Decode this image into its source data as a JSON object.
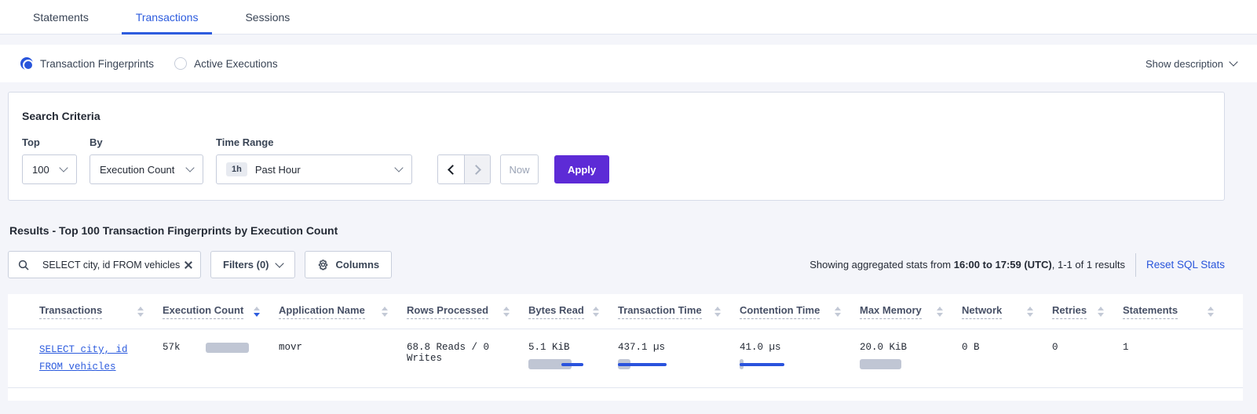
{
  "page": {
    "tabs": [
      {
        "label": "Statements",
        "active": false
      },
      {
        "label": "Transactions",
        "active": true
      },
      {
        "label": "Sessions",
        "active": false
      }
    ]
  },
  "view_mode": {
    "options": [
      {
        "label": "Transaction Fingerprints",
        "selected": true
      },
      {
        "label": "Active Executions",
        "selected": false
      }
    ],
    "show_description_label": "Show description"
  },
  "search_criteria": {
    "title": "Search Criteria",
    "top_label": "Top",
    "top_value": "100",
    "by_label": "By",
    "by_value": "Execution Count",
    "time_range_label": "Time Range",
    "time_range_badge": "1h",
    "time_range_value": "Past Hour",
    "now_label": "Now",
    "apply_label": "Apply"
  },
  "results": {
    "heading": "Results - Top 100 Transaction Fingerprints by Execution Count",
    "search_value": "SELECT city, id FROM vehicles WHE",
    "filters_label": "Filters (0)",
    "columns_label": "Columns",
    "stats_prefix": "Showing aggregated stats from ",
    "stats_range": "16:00 to 17:59 (UTC)",
    "stats_suffix": ", 1-1 of 1 results",
    "reset_link": "Reset SQL Stats"
  },
  "table": {
    "columns": [
      {
        "label": "Transactions",
        "sorted": null
      },
      {
        "label": "Execution Count",
        "sorted": "desc"
      },
      {
        "label": "Application Name",
        "sorted": null
      },
      {
        "label": "Rows Processed",
        "sorted": null
      },
      {
        "label": "Bytes Read",
        "sorted": null
      },
      {
        "label": "Transaction Time",
        "sorted": null
      },
      {
        "label": "Contention Time",
        "sorted": null
      },
      {
        "label": "Max Memory",
        "sorted": null
      },
      {
        "label": "Network",
        "sorted": null
      },
      {
        "label": "Retries",
        "sorted": null
      },
      {
        "label": "Statements",
        "sorted": null
      }
    ],
    "row": {
      "transaction_line1": "SELECT city, id",
      "transaction_line2": "FROM vehicles",
      "execution_count": "57k",
      "application_name": "movr",
      "rows_processed": "68.8 Reads / 0 Writes",
      "bytes_read": "5.1 KiB",
      "transaction_time": "437.1 µs",
      "contention_time": "41.0 µs",
      "max_memory": "20.0 KiB",
      "network": "0 B",
      "retries": "0",
      "statements": "1",
      "bars": {
        "execution_count": {
          "gray": 55
        },
        "bytes_read": {
          "gray": 55,
          "blue": [
            42,
            70
          ]
        },
        "transaction_time": {
          "gray": 16,
          "blue": [
            0,
            62
          ]
        },
        "contention_time": {
          "gray": 5,
          "blue": [
            0,
            57
          ]
        },
        "max_memory": {
          "gray": 53
        }
      }
    }
  },
  "icons": [
    "search-icon",
    "clear-icon",
    "chevron-down-icon",
    "chevron-left-icon",
    "chevron-right-icon",
    "gear-icon",
    "sort-icon"
  ]
}
